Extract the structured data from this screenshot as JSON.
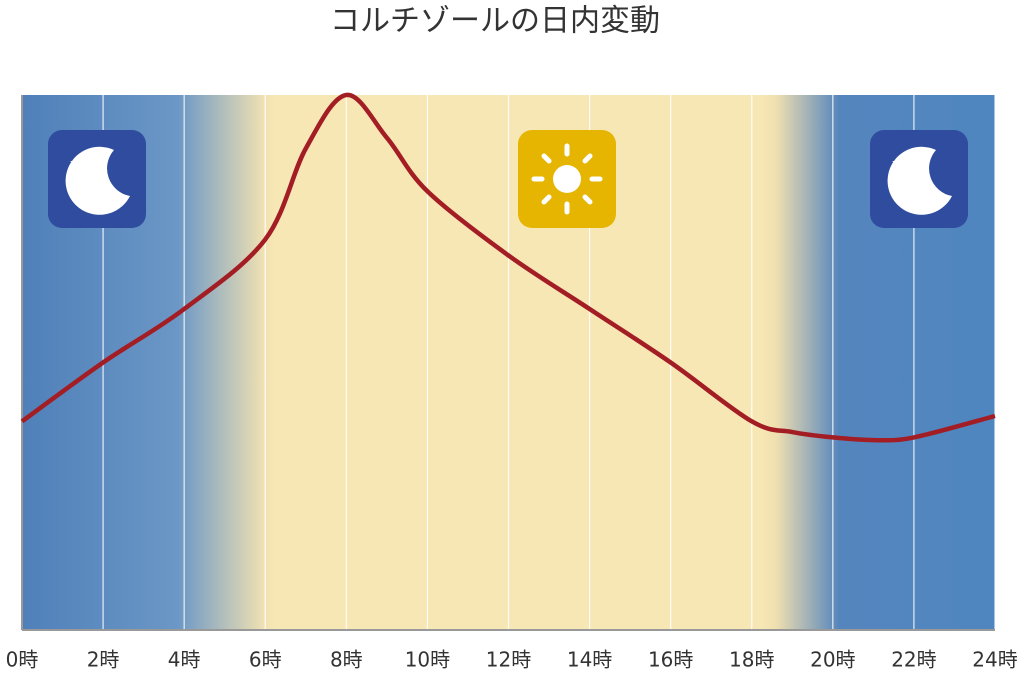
{
  "chart_data": {
    "type": "line",
    "title": "コルチゾールの日内変動",
    "x": [
      0,
      2,
      4,
      6,
      7,
      8,
      9,
      10,
      12,
      14,
      16,
      18,
      19,
      20,
      21,
      22,
      24
    ],
    "series": [
      {
        "color": "#a31d24",
        "values": [
          39,
          50,
          60,
          73,
          90,
          100,
          92,
          82,
          70,
          60,
          50,
          39,
          37,
          36,
          35.5,
          36,
          40
        ]
      }
    ],
    "xlim": [
      0,
      24
    ],
    "xticks": [
      {
        "value": 0,
        "label": "0時"
      },
      {
        "value": 2,
        "label": "2時"
      },
      {
        "value": 4,
        "label": "4時"
      },
      {
        "value": 6,
        "label": "6時"
      },
      {
        "value": 8,
        "label": "8時"
      },
      {
        "value": 10,
        "label": "10時"
      },
      {
        "value": 12,
        "label": "12時"
      },
      {
        "value": 14,
        "label": "14時"
      },
      {
        "value": 16,
        "label": "16時"
      },
      {
        "value": 18,
        "label": "18時"
      },
      {
        "value": 20,
        "label": "20時"
      },
      {
        "value": 22,
        "label": "22時"
      },
      {
        "value": 24,
        "label": "24時"
      }
    ],
    "ylim": [
      0,
      100
    ],
    "grid": true
  }
}
